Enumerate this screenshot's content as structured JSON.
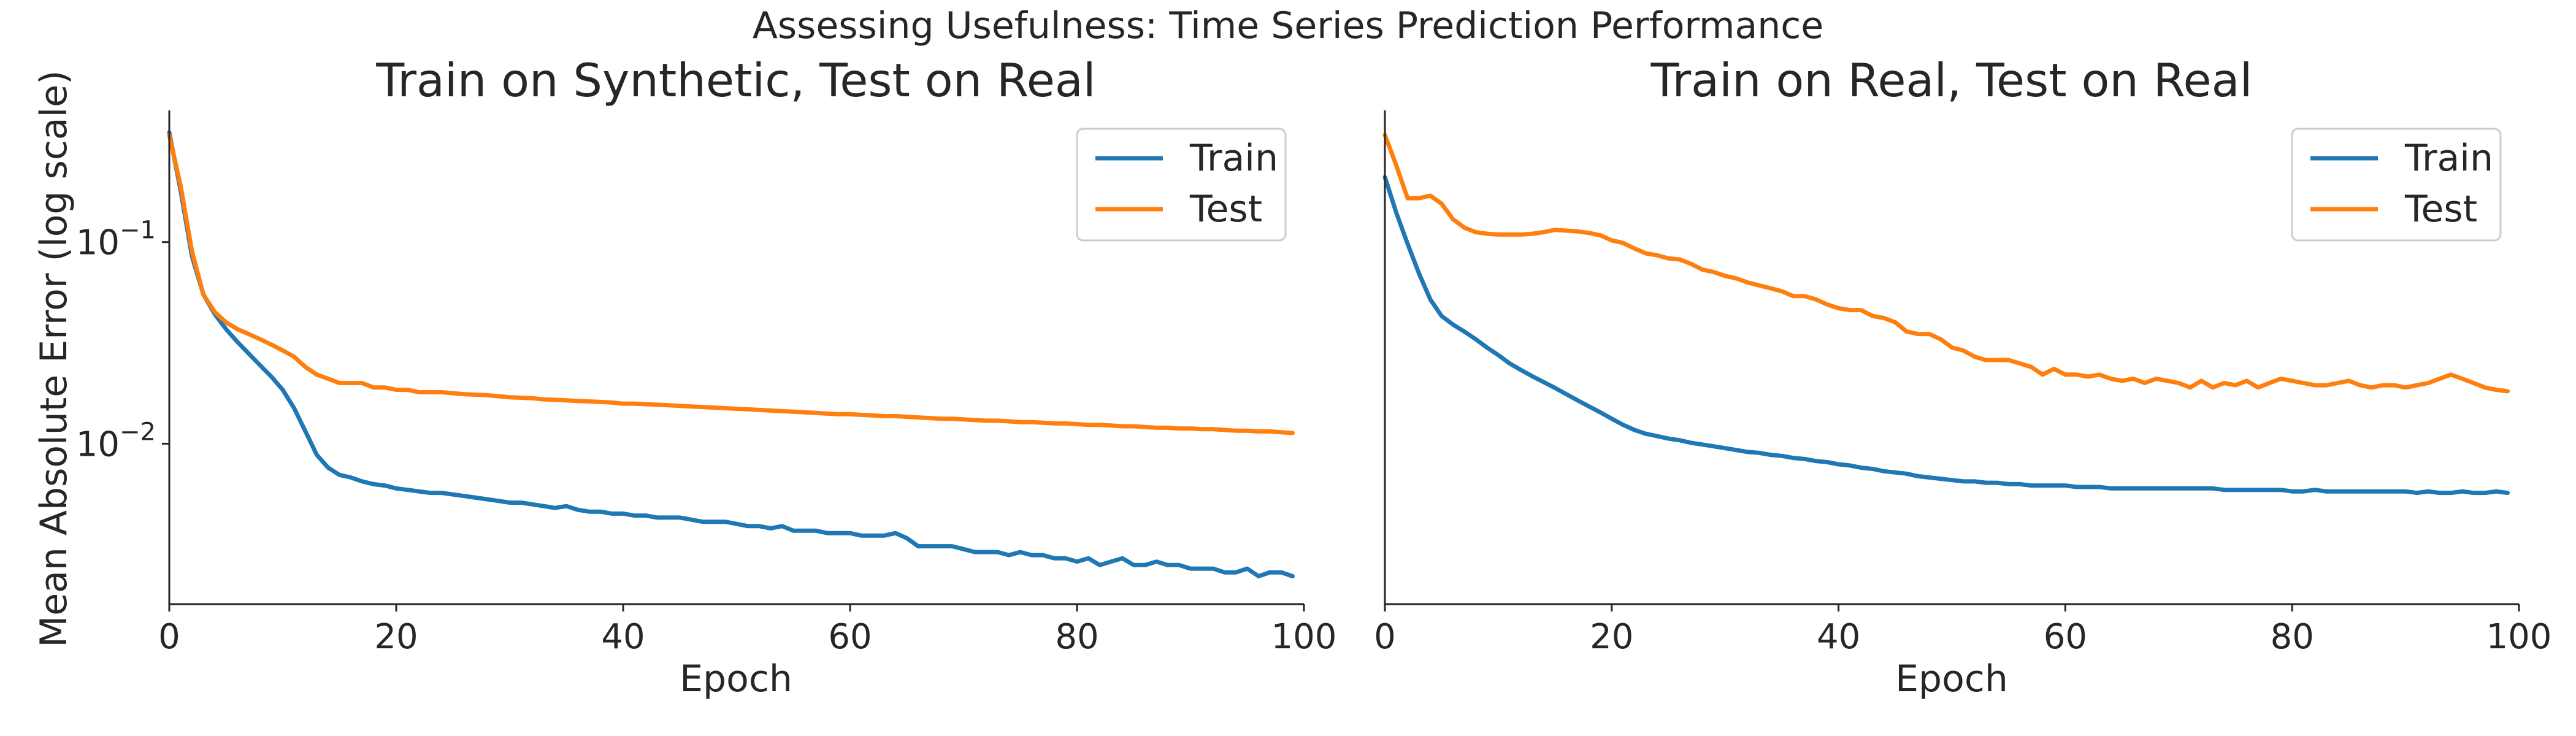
{
  "figure": {
    "suptitle": "Assessing Usefulness: Time Series Prediction Performance"
  },
  "chart_data": [
    {
      "type": "line",
      "title": "Train on Synthetic, Test on Real",
      "xlabel": "Epoch",
      "ylabel": "Mean Absolute Error (log scale)",
      "yscale": "log",
      "xlim": [
        0,
        100
      ],
      "ylim": [
        0.0016,
        0.45
      ],
      "x_ticks": [
        0,
        20,
        40,
        60,
        80,
        100
      ],
      "y_ticks": [
        {
          "value": 0.1,
          "base": "10",
          "exp": "−1"
        },
        {
          "value": 0.01,
          "base": "10",
          "exp": "−2"
        }
      ],
      "grid": false,
      "legend_position": "upper-right",
      "x": [
        0,
        1,
        2,
        3,
        4,
        5,
        6,
        7,
        8,
        9,
        10,
        11,
        12,
        13,
        14,
        15,
        16,
        17,
        18,
        19,
        20,
        21,
        22,
        23,
        24,
        25,
        26,
        27,
        28,
        29,
        30,
        31,
        32,
        33,
        34,
        35,
        36,
        37,
        38,
        39,
        40,
        41,
        42,
        43,
        44,
        45,
        46,
        47,
        48,
        49,
        50,
        51,
        52,
        53,
        54,
        55,
        56,
        57,
        58,
        59,
        60,
        61,
        62,
        63,
        64,
        65,
        66,
        67,
        68,
        69,
        70,
        71,
        72,
        73,
        74,
        75,
        76,
        77,
        78,
        79,
        80,
        81,
        82,
        83,
        84,
        85,
        86,
        87,
        88,
        89,
        90,
        91,
        92,
        93,
        94,
        95,
        96,
        97,
        98,
        99
      ],
      "series": [
        {
          "name": "Train",
          "color": "#1f77b4",
          "values": [
            0.35,
            0.18,
            0.085,
            0.055,
            0.044,
            0.037,
            0.032,
            0.028,
            0.0245,
            0.0215,
            0.0185,
            0.015,
            0.0115,
            0.0088,
            0.0076,
            0.007,
            0.0068,
            0.0065,
            0.0063,
            0.0062,
            0.006,
            0.0059,
            0.0058,
            0.0057,
            0.0057,
            0.0056,
            0.0055,
            0.0054,
            0.0053,
            0.0052,
            0.0051,
            0.0051,
            0.005,
            0.0049,
            0.0048,
            0.0049,
            0.0047,
            0.0046,
            0.0046,
            0.0045,
            0.0045,
            0.0044,
            0.0044,
            0.0043,
            0.0043,
            0.0043,
            0.0042,
            0.0041,
            0.0041,
            0.0041,
            0.004,
            0.0039,
            0.0039,
            0.0038,
            0.0039,
            0.0037,
            0.0037,
            0.0037,
            0.0036,
            0.0036,
            0.0036,
            0.0035,
            0.0035,
            0.0035,
            0.0036,
            0.0034,
            0.0031,
            0.0031,
            0.0031,
            0.0031,
            0.003,
            0.0029,
            0.0029,
            0.0029,
            0.0028,
            0.0029,
            0.0028,
            0.0028,
            0.0027,
            0.0027,
            0.0026,
            0.0027,
            0.0025,
            0.0026,
            0.0027,
            0.0025,
            0.0025,
            0.0026,
            0.0025,
            0.0025,
            0.0024,
            0.0024,
            0.0024,
            0.0023,
            0.0023,
            0.0024,
            0.0022,
            0.0023,
            0.0023,
            0.0022
          ]
        },
        {
          "name": "Test",
          "color": "#ff7f0e",
          "values": [
            0.34,
            0.19,
            0.09,
            0.055,
            0.045,
            0.04,
            0.037,
            0.035,
            0.033,
            0.031,
            0.029,
            0.027,
            0.024,
            0.022,
            0.021,
            0.02,
            0.02,
            0.02,
            0.019,
            0.019,
            0.0185,
            0.0185,
            0.018,
            0.018,
            0.018,
            0.0178,
            0.0176,
            0.0175,
            0.0174,
            0.0172,
            0.017,
            0.0169,
            0.0168,
            0.0166,
            0.0165,
            0.0164,
            0.0163,
            0.0162,
            0.0161,
            0.016,
            0.0158,
            0.0158,
            0.0157,
            0.0156,
            0.0155,
            0.0154,
            0.0153,
            0.0152,
            0.0151,
            0.015,
            0.0149,
            0.0148,
            0.0147,
            0.0146,
            0.0145,
            0.0144,
            0.0143,
            0.0142,
            0.0141,
            0.014,
            0.014,
            0.0139,
            0.0138,
            0.0137,
            0.0137,
            0.0136,
            0.0135,
            0.0134,
            0.0133,
            0.0133,
            0.0132,
            0.0131,
            0.013,
            0.013,
            0.0129,
            0.0128,
            0.0128,
            0.0127,
            0.0126,
            0.0126,
            0.0125,
            0.0124,
            0.0124,
            0.0123,
            0.0122,
            0.0122,
            0.0121,
            0.012,
            0.012,
            0.0119,
            0.0119,
            0.0118,
            0.0118,
            0.0117,
            0.0116,
            0.0116,
            0.0115,
            0.0115,
            0.0114,
            0.0113
          ]
        }
      ]
    },
    {
      "type": "line",
      "title": "Train on Real, Test on Real",
      "xlabel": "Epoch",
      "ylabel": "",
      "yscale": "log",
      "xlim": [
        0,
        100
      ],
      "ylim": [
        0.0016,
        0.45
      ],
      "x_ticks": [
        0,
        20,
        40,
        60,
        80,
        100
      ],
      "y_ticks": [],
      "grid": false,
      "legend_position": "upper-right",
      "x": [
        0,
        1,
        2,
        3,
        4,
        5,
        6,
        7,
        8,
        9,
        10,
        11,
        12,
        13,
        14,
        15,
        16,
        17,
        18,
        19,
        20,
        21,
        22,
        23,
        24,
        25,
        26,
        27,
        28,
        29,
        30,
        31,
        32,
        33,
        34,
        35,
        36,
        37,
        38,
        39,
        40,
        41,
        42,
        43,
        44,
        45,
        46,
        47,
        48,
        49,
        50,
        51,
        52,
        53,
        54,
        55,
        56,
        57,
        58,
        59,
        60,
        61,
        62,
        63,
        64,
        65,
        66,
        67,
        68,
        69,
        70,
        71,
        72,
        73,
        74,
        75,
        76,
        77,
        78,
        79,
        80,
        81,
        82,
        83,
        84,
        85,
        86,
        87,
        88,
        89,
        90,
        91,
        92,
        93,
        94,
        95,
        96,
        97,
        98,
        99
      ],
      "series": [
        {
          "name": "Train",
          "color": "#1f77b4",
          "values": [
            0.21,
            0.14,
            0.098,
            0.07,
            0.052,
            0.043,
            0.039,
            0.036,
            0.033,
            0.03,
            0.0275,
            0.025,
            0.0232,
            0.0216,
            0.0202,
            0.0189,
            0.0176,
            0.0164,
            0.0153,
            0.0143,
            0.0133,
            0.0124,
            0.0117,
            0.0112,
            0.0109,
            0.0106,
            0.0104,
            0.0101,
            0.0099,
            0.0097,
            0.0095,
            0.0093,
            0.0091,
            0.009,
            0.0088,
            0.0087,
            0.0085,
            0.0084,
            0.0082,
            0.0081,
            0.0079,
            0.0078,
            0.0076,
            0.0075,
            0.0073,
            0.0072,
            0.0071,
            0.0069,
            0.0068,
            0.0067,
            0.0066,
            0.0065,
            0.0065,
            0.0064,
            0.0064,
            0.0063,
            0.0063,
            0.0062,
            0.0062,
            0.0062,
            0.0062,
            0.0061,
            0.0061,
            0.0061,
            0.006,
            0.006,
            0.006,
            0.006,
            0.006,
            0.006,
            0.006,
            0.006,
            0.006,
            0.006,
            0.0059,
            0.0059,
            0.0059,
            0.0059,
            0.0059,
            0.0059,
            0.0058,
            0.0058,
            0.0059,
            0.0058,
            0.0058,
            0.0058,
            0.0058,
            0.0058,
            0.0058,
            0.0058,
            0.0058,
            0.0057,
            0.0058,
            0.0057,
            0.0057,
            0.0058,
            0.0057,
            0.0057,
            0.0058,
            0.0057
          ]
        },
        {
          "name": "Test",
          "color": "#ff7f0e",
          "values": [
            0.34,
            0.24,
            0.165,
            0.165,
            0.17,
            0.155,
            0.13,
            0.118,
            0.112,
            0.11,
            0.109,
            0.109,
            0.109,
            0.11,
            0.112,
            0.115,
            0.114,
            0.113,
            0.111,
            0.108,
            0.102,
            0.099,
            0.093,
            0.088,
            0.086,
            0.083,
            0.082,
            0.078,
            0.073,
            0.071,
            0.068,
            0.066,
            0.063,
            0.061,
            0.059,
            0.057,
            0.054,
            0.054,
            0.052,
            0.049,
            0.047,
            0.046,
            0.046,
            0.043,
            0.042,
            0.04,
            0.036,
            0.035,
            0.035,
            0.033,
            0.03,
            0.029,
            0.027,
            0.026,
            0.026,
            0.026,
            0.025,
            0.024,
            0.022,
            0.0235,
            0.022,
            0.022,
            0.0215,
            0.022,
            0.021,
            0.0205,
            0.021,
            0.02,
            0.021,
            0.0205,
            0.02,
            0.019,
            0.0205,
            0.019,
            0.02,
            0.0195,
            0.0205,
            0.019,
            0.02,
            0.021,
            0.0205,
            0.02,
            0.0195,
            0.0195,
            0.02,
            0.0205,
            0.0195,
            0.019,
            0.0195,
            0.0195,
            0.019,
            0.0195,
            0.02,
            0.021,
            0.022,
            0.021,
            0.02,
            0.019,
            0.0185,
            0.0182
          ]
        }
      ]
    }
  ]
}
